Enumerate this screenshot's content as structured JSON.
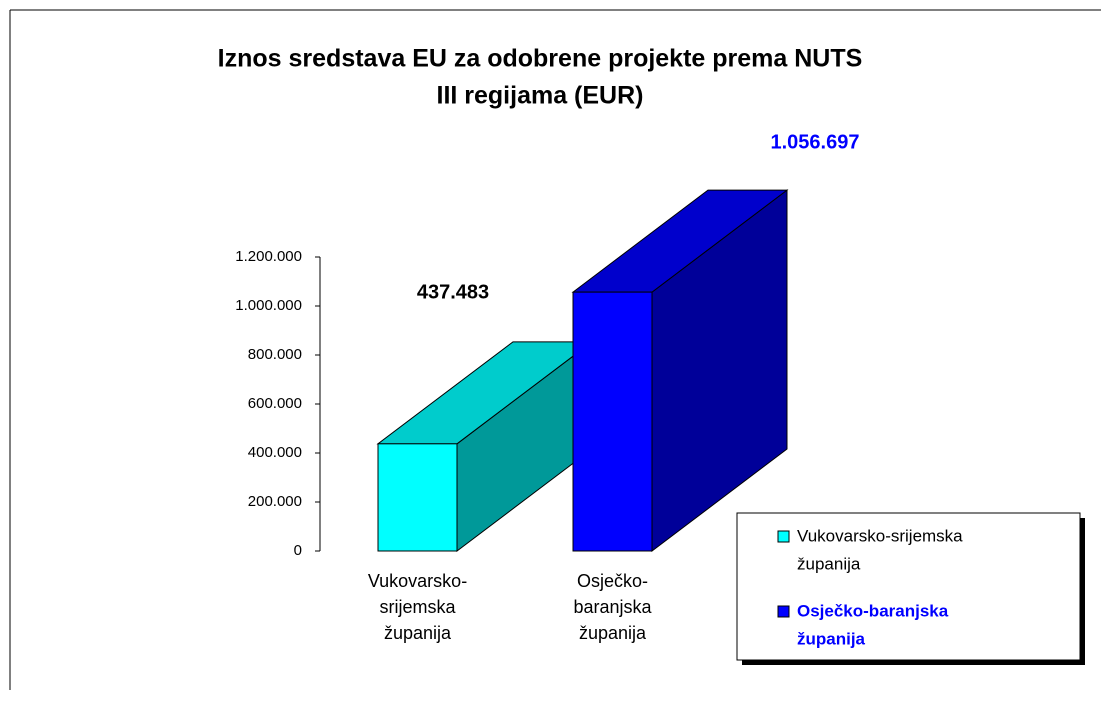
{
  "chart_data": {
    "type": "bar3d",
    "title": [
      "Iznos sredstava EU za odobrene projekte  prema NUTS",
      "III regijama (EUR)"
    ],
    "categories": [
      [
        "Vukovarsko-",
        "srijemska",
        "županija"
      ],
      [
        "Osječko-",
        "baranjska",
        "županija"
      ]
    ],
    "series": [
      {
        "name": [
          "Vukovarsko-srijemska",
          "županija"
        ],
        "color": "#00ffff",
        "label_color": "#000000",
        "values": [
          437483,
          null
        ],
        "value_labels": [
          "437.483",
          null
        ]
      },
      {
        "name": [
          "Osječko-baranjska",
          "županija"
        ],
        "color": "#0000ff",
        "label_color": "#0000ff",
        "values": [
          null,
          1056697
        ],
        "value_labels": [
          null,
          "1.056.697"
        ]
      }
    ],
    "ylim": [
      0,
      1200000
    ],
    "yticks": [
      0,
      {
        "value": 200000,
        "label": "200.000"
      },
      {
        "value": 400000,
        "label": "400.000"
      },
      {
        "value": 600000,
        "label": "600.000"
      },
      {
        "value": 800000,
        "label": "800.000"
      },
      {
        "value": 1000000,
        "label": "1.000.000"
      },
      {
        "value": 1200000,
        "label": "1.200.000"
      }
    ],
    "legend": "right"
  }
}
